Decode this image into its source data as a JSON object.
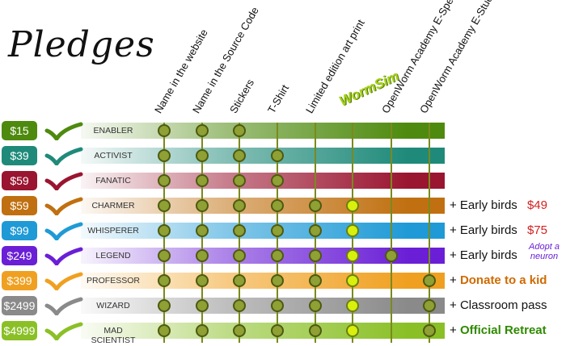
{
  "title": "Pledges",
  "columns": [
    "Name in the website",
    "Name in the Source Code",
    "Stickers",
    "T-Shirt",
    "Limited edition art print",
    "WormSim",
    "OpenWorm Academy E-Spectator",
    "OpenWorm Academy E-Student"
  ],
  "tiers": [
    {
      "price": "$15",
      "name": "ENABLER",
      "color": "#4e8a0e",
      "dots": [
        0,
        1,
        2
      ],
      "hl": [],
      "extra": null
    },
    {
      "price": "$39",
      "name": "ACTIVIST",
      "color": "#1f8a7a",
      "dots": [
        0,
        1,
        2,
        3
      ],
      "hl": [],
      "extra": null
    },
    {
      "price": "$59",
      "name": "FANATIC",
      "color": "#9a1530",
      "dots": [
        0,
        1,
        2,
        3
      ],
      "hl": [],
      "extra": null
    },
    {
      "price": "$59",
      "name": "CHARMER",
      "color": "#c07010",
      "dots": [
        0,
        1,
        2,
        3,
        4
      ],
      "hl": [
        5
      ],
      "extra": {
        "text": "+ Early birds",
        "value": "$49",
        "style": "red"
      }
    },
    {
      "price": "$99",
      "name": "WHISPERER",
      "color": "#1f9ad6",
      "dots": [
        0,
        1,
        2,
        3,
        4
      ],
      "hl": [
        5
      ],
      "extra": {
        "text": "+ Early birds",
        "value": "$75",
        "style": "red"
      }
    },
    {
      "price": "$249",
      "name": "LEGEND",
      "color": "#6a1fd6",
      "dots": [
        0,
        1,
        2,
        3,
        4,
        6
      ],
      "hl": [
        5
      ],
      "extra": {
        "text": "+ Early birds",
        "value": "",
        "style": "red"
      }
    },
    {
      "price": "$399",
      "name": "PROFESSOR",
      "color": "#f0a020",
      "dots": [
        0,
        1,
        2,
        3,
        4,
        7
      ],
      "hl": [
        5
      ],
      "extra": {
        "text": "+",
        "value": "Donate to a kid",
        "style": "orange"
      }
    },
    {
      "price": "$2499",
      "name": "WIZARD",
      "color": "#8a8a8a",
      "dots": [
        0,
        1,
        2,
        3,
        4,
        7
      ],
      "hl": [
        5
      ],
      "extra": {
        "text": "+",
        "value": "Classroom pass",
        "style": "plain"
      }
    },
    {
      "price": "$4999",
      "name": "MAD SCIENTIST",
      "color": "#8ac026",
      "dots": [
        0,
        1,
        2,
        3,
        4,
        7
      ],
      "hl": [
        5
      ],
      "extra": {
        "text": "+",
        "value": "Official Retreat",
        "style": "green"
      }
    }
  ],
  "adopt_note": "Adopt a neuron",
  "colors": {
    "line": "#7a8a1e",
    "dot": "#8fa034",
    "dot_highlight": "#d8f00c"
  }
}
